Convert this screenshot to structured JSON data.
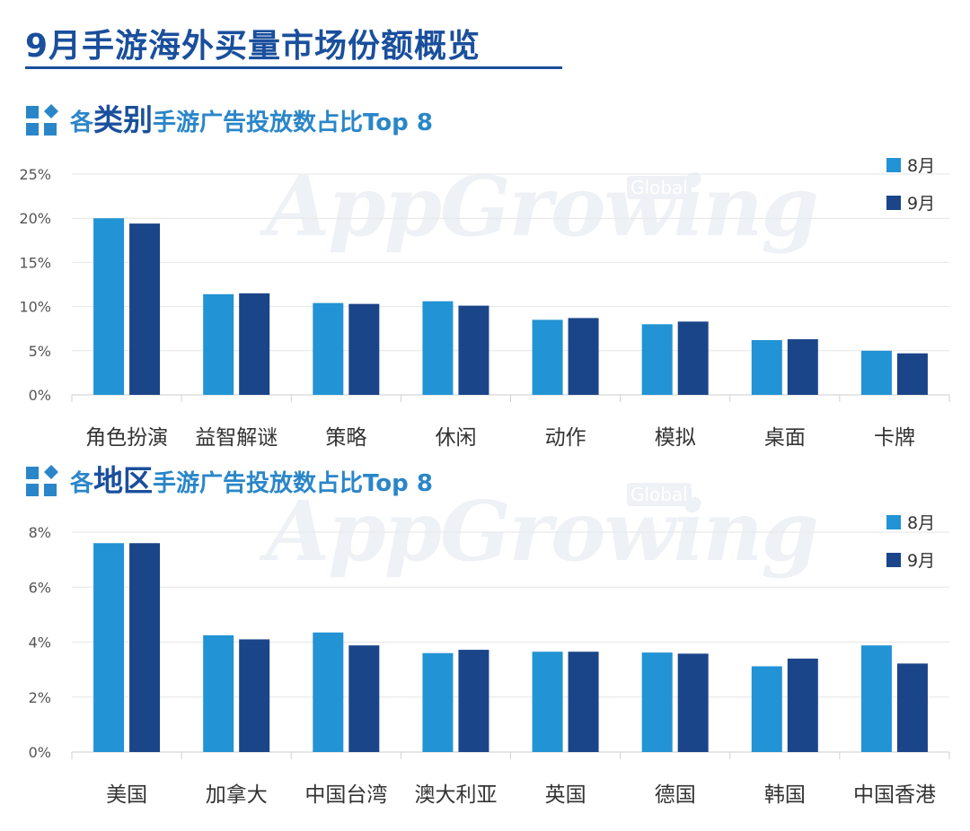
{
  "title": "9月手游海外买量市场份额概览",
  "colors": {
    "aug": "#2293d4",
    "sep": "#1b4589",
    "accent": "#1a4f9c",
    "grid": "#e6e6e6"
  },
  "watermark": {
    "text": "AppGrowing",
    "badge": "Global"
  },
  "sections": [
    {
      "prefix": "各",
      "big": "类别",
      "rest": "手游广告投放数占比Top 8"
    },
    {
      "prefix": "各",
      "big": "地区",
      "rest": "手游广告投放数占比Top 8"
    }
  ],
  "chart_data": [
    {
      "type": "bar",
      "categories": [
        "角色扮演",
        "益智解谜",
        "策略",
        "休闲",
        "动作",
        "模拟",
        "桌面",
        "卡牌"
      ],
      "series": [
        {
          "name": "8月",
          "values": [
            20.0,
            11.4,
            10.4,
            10.6,
            8.5,
            8.0,
            6.2,
            5.0
          ]
        },
        {
          "name": "9月",
          "values": [
            19.4,
            11.5,
            10.3,
            10.1,
            8.7,
            8.3,
            6.3,
            4.7
          ]
        }
      ],
      "ylim": [
        0,
        25
      ],
      "yticks": [
        "0%",
        "5%",
        "10%",
        "15%",
        "20%",
        "25%"
      ],
      "legend": "top-right",
      "grid": true
    },
    {
      "type": "bar",
      "categories": [
        "美国",
        "加拿大",
        "中国台湾",
        "澳大利亚",
        "英国",
        "德国",
        "韩国",
        "中国香港"
      ],
      "series": [
        {
          "name": "8月",
          "values": [
            7.6,
            4.25,
            4.35,
            3.6,
            3.65,
            3.62,
            3.12,
            3.88
          ]
        },
        {
          "name": "9月",
          "values": [
            7.6,
            4.1,
            3.88,
            3.72,
            3.65,
            3.58,
            3.4,
            3.22
          ]
        }
      ],
      "ylim": [
        0,
        8
      ],
      "yticks": [
        "0%",
        "2%",
        "4%",
        "6%",
        "8%"
      ],
      "legend": "top-right",
      "grid": true
    }
  ]
}
